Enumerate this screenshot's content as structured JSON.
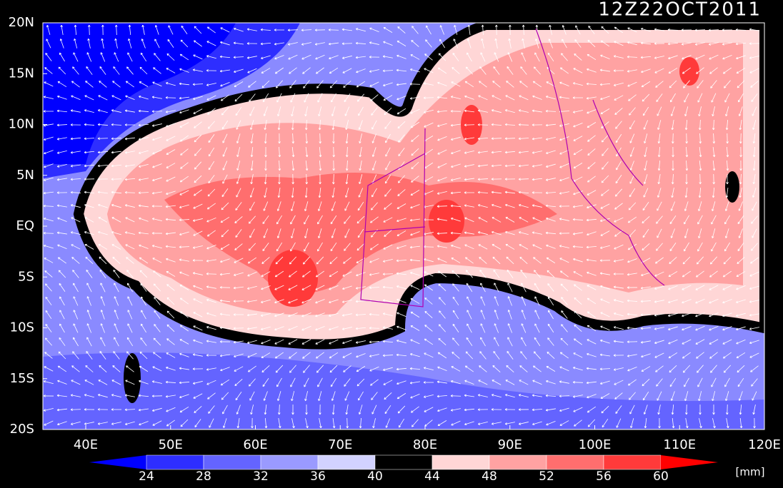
{
  "title": "12Z22OCT2011",
  "lat_labels": [
    "20N",
    "15N",
    "10N",
    "5N",
    "EQ",
    "5S",
    "10S",
    "15S",
    "20S"
  ],
  "lon_labels": [
    "40E",
    "50E",
    "60E",
    "70E",
    "80E",
    "90E",
    "100E",
    "110E",
    "120E"
  ],
  "colorbar": {
    "labels": [
      "24",
      "28",
      "32",
      "36",
      "40",
      "44",
      "48",
      "52",
      "56",
      "60"
    ],
    "colors": [
      "#0000ff",
      "#2e2eff",
      "#6464ff",
      "#9a9aff",
      "#d2d2ff",
      "#000000",
      "#ffd6d6",
      "#ffa2a2",
      "#ff6e6e",
      "#ff3a3a",
      "#ff0000"
    ],
    "unit": "[mm]"
  }
}
